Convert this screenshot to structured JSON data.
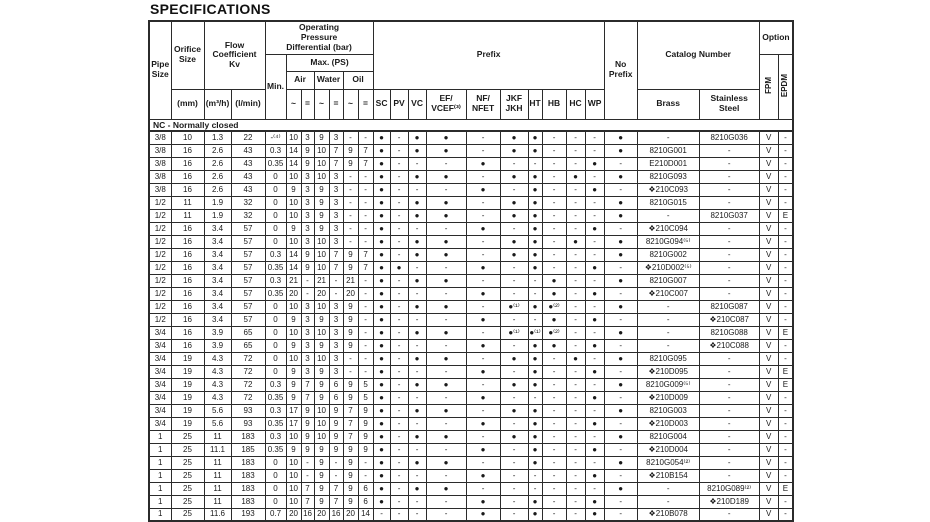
{
  "title": "SPECIFICATIONS",
  "section_label": "NC - Normally closed",
  "header": {
    "pipe_size": "Pipe\nSize",
    "orifice_size": "Orifice\nSize",
    "orifice_unit": "(mm)",
    "flow_coefficient": "Flow\nCoefficient\nKv",
    "flow_unit_m3h": "(m³/h)",
    "flow_unit_lmin": "(l/min)",
    "opd": "Operating\nPressure\nDifferential (bar)",
    "min": "Min.",
    "max_ps": "Max. (PS)",
    "media_air": "Air",
    "media_water": "Water",
    "media_oil": "Oil",
    "ac_symbol": "~",
    "dc_symbol": "=",
    "prefix": "Prefix",
    "prefix_sc": "SC",
    "prefix_pv": "PV",
    "prefix_vc": "VC",
    "prefix_ef": "EF/\nVCEF⁽³⁾",
    "prefix_nf": "NF/\nNFET",
    "prefix_jkf": "JKF\nJKH",
    "prefix_ht": "HT",
    "prefix_hb": "HB",
    "prefix_hc": "HC",
    "prefix_wp": "WP",
    "no_prefix": "No\nPrefix",
    "catalog_number": "Catalog Number",
    "material_brass": "Brass",
    "material_stainless": "Stainless\nSteel",
    "option": "Option",
    "option_fpm": "FPM",
    "option_epdm": "EPDM"
  },
  "symbols": {
    "dot": "●",
    "dash": "-",
    "diamond_prefix": "❖"
  },
  "colors": {
    "text": "#1a1a1a",
    "border": "#2b2b2b",
    "background": "#ffffff"
  },
  "rows": [
    [
      "3/8",
      "10",
      "1.3",
      "22",
      "-⁽⁴⁾",
      "10",
      "3",
      "9",
      "3",
      "-",
      "-",
      "●",
      "-",
      "●",
      "●",
      "-",
      "●",
      "●",
      "-",
      "-",
      "-",
      "●",
      "-",
      "8210G036",
      "V",
      "-"
    ],
    [
      "3/8",
      "16",
      "2.6",
      "43",
      "0.3",
      "14",
      "9",
      "10",
      "7",
      "9",
      "7",
      "●",
      "-",
      "●",
      "●",
      "-",
      "●",
      "●",
      "-",
      "-",
      "-",
      "●",
      "8210G001",
      "-",
      "V",
      "-"
    ],
    [
      "3/8",
      "16",
      "2.6",
      "43",
      "0.35",
      "14",
      "9",
      "10",
      "7",
      "9",
      "7",
      "●",
      "-",
      "-",
      "-",
      "●",
      "-",
      "-",
      "-",
      "-",
      "●",
      "-",
      "E210D001",
      "-",
      "V",
      "-"
    ],
    [
      "3/8",
      "16",
      "2.6",
      "43",
      "0",
      "10",
      "3",
      "10",
      "3",
      "-",
      "-",
      "●",
      "-",
      "●",
      "●",
      "-",
      "●",
      "●",
      "-",
      "●",
      "-",
      "●",
      "8210G093",
      "-",
      "V",
      "-"
    ],
    [
      "3/8",
      "16",
      "2.6",
      "43",
      "0",
      "9",
      "3",
      "9",
      "3",
      "-",
      "-",
      "●",
      "-",
      "-",
      "-",
      "●",
      "-",
      "●",
      "-",
      "-",
      "●",
      "-",
      "❖210C093",
      "-",
      "V",
      "-"
    ],
    [
      "1/2",
      "11",
      "1.9",
      "32",
      "0",
      "10",
      "3",
      "9",
      "3",
      "-",
      "-",
      "●",
      "-",
      "●",
      "●",
      "-",
      "●",
      "●",
      "-",
      "-",
      "-",
      "●",
      "8210G015",
      "-",
      "V",
      "-"
    ],
    [
      "1/2",
      "11",
      "1.9",
      "32",
      "0",
      "10",
      "3",
      "9",
      "3",
      "-",
      "-",
      "●",
      "-",
      "●",
      "●",
      "-",
      "●",
      "●",
      "-",
      "-",
      "-",
      "●",
      "-",
      "8210G037",
      "V",
      "E"
    ],
    [
      "1/2",
      "16",
      "3.4",
      "57",
      "0",
      "9",
      "3",
      "9",
      "3",
      "-",
      "-",
      "●",
      "-",
      "-",
      "-",
      "●",
      "-",
      "●",
      "-",
      "-",
      "●",
      "-",
      "❖210C094",
      "-",
      "V",
      "-"
    ],
    [
      "1/2",
      "16",
      "3.4",
      "57",
      "0",
      "10",
      "3",
      "10",
      "3",
      "-",
      "-",
      "●",
      "-",
      "●",
      "●",
      "-",
      "●",
      "●",
      "-",
      "●",
      "-",
      "●",
      "8210G094⁽⁵⁾",
      "-",
      "V",
      "-"
    ],
    [
      "1/2",
      "16",
      "3.4",
      "57",
      "0.3",
      "14",
      "9",
      "10",
      "7",
      "9",
      "7",
      "●",
      "-",
      "●",
      "●",
      "-",
      "●",
      "●",
      "-",
      "-",
      "-",
      "●",
      "8210G002",
      "-",
      "V",
      "-"
    ],
    [
      "1/2",
      "16",
      "3.4",
      "57",
      "0.35",
      "14",
      "9",
      "10",
      "7",
      "9",
      "7",
      "●",
      "●",
      "-",
      "-",
      "●",
      "-",
      "●",
      "-",
      "-",
      "●",
      "-",
      "❖210D002⁽⁵⁾",
      "-",
      "V",
      "-"
    ],
    [
      "1/2",
      "16",
      "3.4",
      "57",
      "0.3",
      "21",
      "-",
      "21",
      "-",
      "21",
      "-",
      "●",
      "-",
      "●",
      "●",
      "-",
      "-",
      "-",
      "●",
      "-",
      "-",
      "●",
      "8210G007",
      "-",
      "V",
      "-"
    ],
    [
      "1/2",
      "16",
      "3.4",
      "57",
      "0.35",
      "20",
      "-",
      "20",
      "-",
      "20",
      "-",
      "●",
      "-",
      "-",
      "-",
      "●",
      "-",
      "-",
      "●",
      "-",
      "●",
      "-",
      "❖210C007",
      "-",
      "V",
      "-"
    ],
    [
      "1/2",
      "16",
      "3.4",
      "57",
      "0",
      "10",
      "3",
      "10",
      "3",
      "9",
      "-",
      "●",
      "-",
      "●",
      "●",
      "-",
      "●⁽¹⁾",
      "●",
      "●⁽²⁾",
      "-",
      "-",
      "●",
      "-",
      "8210G087",
      "V",
      "-"
    ],
    [
      "1/2",
      "16",
      "3.4",
      "57",
      "0",
      "9",
      "3",
      "9",
      "3",
      "9",
      "-",
      "●",
      "-",
      "-",
      "-",
      "●",
      "-",
      "-",
      "●",
      "-",
      "●",
      "-",
      "-",
      "❖210C087",
      "V",
      "-"
    ],
    [
      "3/4",
      "16",
      "3.9",
      "65",
      "0",
      "10",
      "3",
      "10",
      "3",
      "9",
      "-",
      "●",
      "-",
      "●",
      "●",
      "-",
      "●⁽¹⁾",
      "●⁽¹⁾",
      "●⁽²⁾",
      "-",
      "-",
      "●",
      "-",
      "8210G088",
      "V",
      "E"
    ],
    [
      "3/4",
      "16",
      "3.9",
      "65",
      "0",
      "9",
      "3",
      "9",
      "3",
      "9",
      "-",
      "●",
      "-",
      "-",
      "-",
      "●",
      "-",
      "●",
      "●",
      "-",
      "●",
      "-",
      "-",
      "❖210C088",
      "V",
      "-"
    ],
    [
      "3/4",
      "19",
      "4.3",
      "72",
      "0",
      "10",
      "3",
      "10",
      "3",
      "-",
      "-",
      "●",
      "-",
      "●",
      "●",
      "-",
      "●",
      "●",
      "-",
      "●",
      "-",
      "●",
      "8210G095",
      "-",
      "V",
      "-"
    ],
    [
      "3/4",
      "19",
      "4.3",
      "72",
      "0",
      "9",
      "3",
      "9",
      "3",
      "-",
      "-",
      "●",
      "-",
      "-",
      "-",
      "●",
      "-",
      "●",
      "-",
      "-",
      "●",
      "-",
      "❖210D095",
      "-",
      "V",
      "E"
    ],
    [
      "3/4",
      "19",
      "4.3",
      "72",
      "0.3",
      "9",
      "7",
      "9",
      "6",
      "9",
      "5",
      "●",
      "-",
      "●",
      "●",
      "-",
      "●",
      "●",
      "-",
      "-",
      "-",
      "●",
      "8210G009⁽⁵⁾",
      "-",
      "V",
      "E"
    ],
    [
      "3/4",
      "19",
      "4.3",
      "72",
      "0.35",
      "9",
      "7",
      "9",
      "6",
      "9",
      "5",
      "●",
      "-",
      "-",
      "-",
      "●",
      "-",
      "-",
      "-",
      "-",
      "●",
      "-",
      "❖210D009",
      "-",
      "V",
      "-"
    ],
    [
      "3/4",
      "19",
      "5.6",
      "93",
      "0.3",
      "17",
      "9",
      "10",
      "9",
      "7",
      "9",
      "●",
      "-",
      "●",
      "●",
      "-",
      "●",
      "●",
      "-",
      "-",
      "-",
      "●",
      "8210G003",
      "-",
      "V",
      "-"
    ],
    [
      "3/4",
      "19",
      "5.6",
      "93",
      "0.35",
      "17",
      "9",
      "10",
      "9",
      "7",
      "9",
      "●",
      "-",
      "-",
      "-",
      "●",
      "-",
      "●",
      "-",
      "-",
      "●",
      "-",
      "❖210D003",
      "-",
      "V",
      "-"
    ],
    [
      "1",
      "25",
      "11",
      "183",
      "0.3",
      "10",
      "9",
      "10",
      "9",
      "7",
      "9",
      "●",
      "-",
      "●",
      "●",
      "-",
      "●",
      "●",
      "-",
      "-",
      "-",
      "●",
      "8210G004",
      "-",
      "V",
      "-"
    ],
    [
      "1",
      "25",
      "11.1",
      "185",
      "0.35",
      "9",
      "9",
      "9",
      "9",
      "9",
      "9",
      "●",
      "-",
      "-",
      "-",
      "●",
      "-",
      "●",
      "-",
      "-",
      "●",
      "-",
      "❖210D004",
      "-",
      "V",
      "-"
    ],
    [
      "1",
      "25",
      "11",
      "183",
      "0",
      "10",
      "-",
      "9",
      "-",
      "9",
      "-",
      "●",
      "-",
      "●",
      "●",
      "-",
      "-",
      "●",
      "-",
      "-",
      "-",
      "●",
      "8210G054⁽²⁾",
      "-",
      "V",
      "-"
    ],
    [
      "1",
      "25",
      "11",
      "183",
      "0",
      "10",
      "-",
      "9",
      "-",
      "9",
      "-",
      "●",
      "-",
      "-",
      "-",
      "●",
      "-",
      "-",
      "-",
      "-",
      "●",
      "-",
      "❖210B154",
      "-",
      "V",
      "-"
    ],
    [
      "1",
      "25",
      "11",
      "183",
      "0",
      "10",
      "7",
      "9",
      "7",
      "9",
      "6",
      "●",
      "-",
      "●",
      "●",
      "-",
      "-",
      "-",
      "-",
      "-",
      "-",
      "●",
      "-",
      "8210G089⁽²⁾",
      "V",
      "E"
    ],
    [
      "1",
      "25",
      "11",
      "183",
      "0",
      "10",
      "7",
      "9",
      "7",
      "9",
      "6",
      "●",
      "-",
      "-",
      "-",
      "●",
      "-",
      "●",
      "-",
      "-",
      "●",
      "-",
      "-",
      "❖210D189",
      "V",
      "-"
    ],
    [
      "1",
      "25",
      "11.6",
      "193",
      "0.7",
      "20",
      "16",
      "20",
      "16",
      "20",
      "14",
      "-",
      "-",
      "-",
      "-",
      "●",
      "-",
      "●",
      "-",
      "-",
      "●",
      "-",
      "❖210B078",
      "-",
      "V",
      "-"
    ]
  ]
}
